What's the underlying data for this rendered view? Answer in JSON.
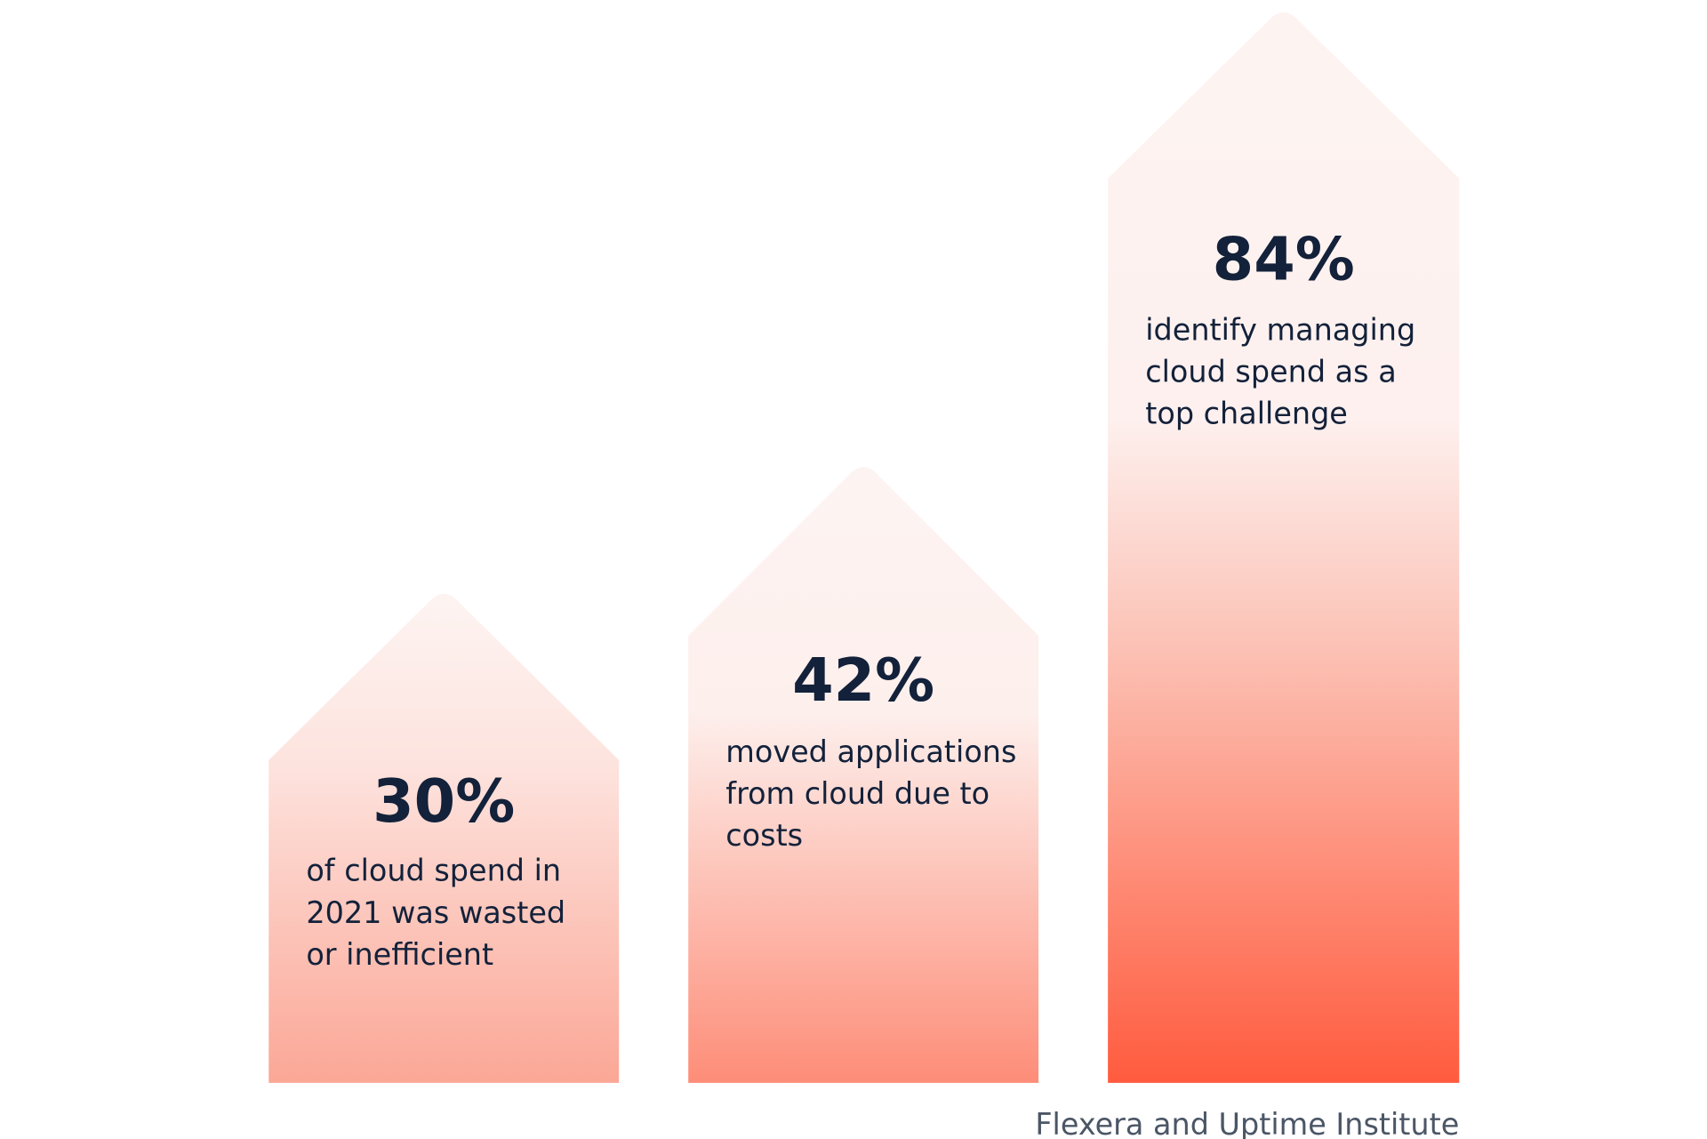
{
  "items": [
    {
      "value": "30%",
      "lines": [
        "of cloud spend in",
        "2021 was wasted",
        "or inefficient"
      ]
    },
    {
      "value": "42%",
      "lines": [
        "moved applications",
        "from cloud due to",
        "costs"
      ]
    },
    {
      "value": "84%",
      "lines": [
        "identify managing",
        "cloud spend as a",
        "top challenge"
      ]
    }
  ],
  "source": "Flexera and Uptime Institute"
}
